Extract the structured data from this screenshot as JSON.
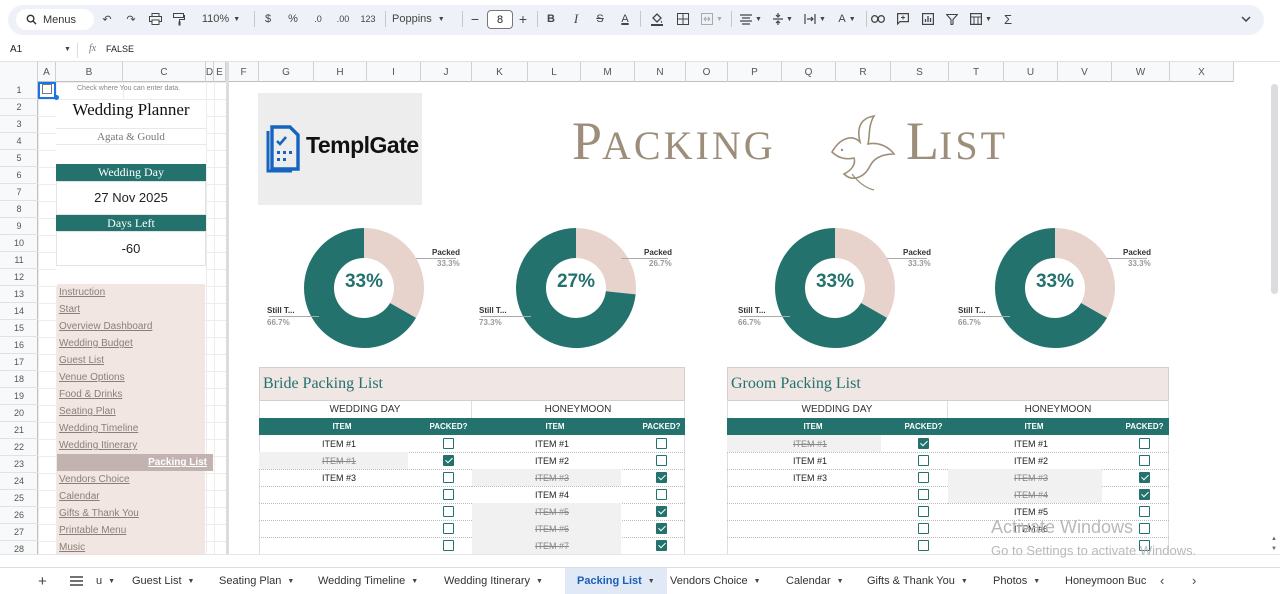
{
  "toolbar": {
    "menus_label": "Menus",
    "zoom": "110%",
    "currency": "$",
    "percent": "%",
    "dec_decrease": ".0",
    "dec_increase": ".00",
    "number_format": "123",
    "font": "Poppins",
    "font_size": "8",
    "minus": "−",
    "plus": "+",
    "bold": "B",
    "italic": "I",
    "strike": "S",
    "text_color": "A",
    "fx": "fx",
    "sigma": "Σ"
  },
  "formula_bar": {
    "cell_ref": "A1",
    "fx_label": "fx",
    "value": "FALSE"
  },
  "columns": [
    "A",
    "B",
    "C",
    "D",
    "E",
    "F",
    "G",
    "H",
    "I",
    "J",
    "K",
    "L",
    "M",
    "N",
    "O",
    "P",
    "Q",
    "R",
    "S",
    "T",
    "U",
    "V",
    "W",
    "X"
  ],
  "rows": [
    "1",
    "2",
    "3",
    "4",
    "5",
    "6",
    "7",
    "8",
    "9",
    "10",
    "11",
    "12",
    "13",
    "14",
    "15",
    "16",
    "17",
    "18",
    "19",
    "20",
    "21",
    "22",
    "23",
    "24",
    "25",
    "26",
    "27",
    "28"
  ],
  "sidebar": {
    "hint": "Check where You can enter data.",
    "title": "Wedding Planner",
    "couple": "Agata & Gould",
    "wedding_day_label": "Wedding Day",
    "wedding_day_value": "27 Nov 2025",
    "days_left_label": "Days Left",
    "days_left_value": "-60",
    "items": [
      {
        "label": "Instruction"
      },
      {
        "label": "Start"
      },
      {
        "label": "Overview Dashboard"
      },
      {
        "label": "Wedding Budget"
      },
      {
        "label": "Guest List"
      },
      {
        "label": "Venue Options"
      },
      {
        "label": "Food & Drinks"
      },
      {
        "label": "Seating Plan"
      },
      {
        "label": "Wedding Timeline"
      },
      {
        "label": "Wedding Itinerary"
      },
      {
        "label": "Packing List"
      },
      {
        "label": "Vendors Choice"
      },
      {
        "label": "Calendar"
      },
      {
        "label": "Gifts & Thank You"
      },
      {
        "label": "Printable Menu"
      },
      {
        "label": "Music"
      }
    ],
    "active_index": 10
  },
  "logo": {
    "text": "TemplGate"
  },
  "page_title": {
    "first": "P",
    "rest1": "ACKING",
    "second": "L",
    "rest2": "IST"
  },
  "colors": {
    "teal": "#23726d",
    "blush": "#e8d3cc",
    "header_bg": "#f0e6e3",
    "title_brown": "#9d8e7c"
  },
  "charts": [
    {
      "pct_label": "33%",
      "packed_label": "Packed",
      "packed_pct": "33.3%",
      "still_label": "Still T...",
      "still_pct": "66.7%",
      "packed_value": 33.3
    },
    {
      "pct_label": "27%",
      "packed_label": "Packed",
      "packed_pct": "26.7%",
      "still_label": "Still T...",
      "still_pct": "73.3%",
      "packed_value": 26.7
    },
    {
      "pct_label": "33%",
      "packed_label": "Packed",
      "packed_pct": "33.3%",
      "still_label": "Still T...",
      "still_pct": "66.7%",
      "packed_value": 33.3
    },
    {
      "pct_label": "33%",
      "packed_label": "Packed",
      "packed_pct": "33.3%",
      "still_label": "Still T...",
      "still_pct": "66.7%",
      "packed_value": 33.3
    }
  ],
  "bride": {
    "title": "Bride Packing List",
    "wedding_day_header": "WEDDING DAY",
    "honeymoon_header": "HONEYMOON",
    "item_header": "ITEM",
    "packed_header": "PACKED?",
    "wedding_day": [
      {
        "item": "ITEM #1",
        "packed": false
      },
      {
        "item": "ITEM #1",
        "packed": true
      },
      {
        "item": "ITEM #3",
        "packed": false
      },
      {
        "item": "",
        "packed": false
      },
      {
        "item": "",
        "packed": false
      },
      {
        "item": "",
        "packed": false
      },
      {
        "item": "",
        "packed": false
      }
    ],
    "honeymoon": [
      {
        "item": "ITEM #1",
        "packed": false
      },
      {
        "item": "ITEM #2",
        "packed": false
      },
      {
        "item": "ITEM #3",
        "packed": true
      },
      {
        "item": "ITEM #4",
        "packed": false
      },
      {
        "item": "ITEM #5",
        "packed": true
      },
      {
        "item": "ITEM #6",
        "packed": true
      },
      {
        "item": "ITEM #7",
        "packed": true
      }
    ]
  },
  "groom": {
    "title": "Groom Packing List",
    "wedding_day_header": "WEDDING DAY",
    "honeymoon_header": "HONEYMOON",
    "item_header": "ITEM",
    "packed_header": "PACKED?",
    "wedding_day": [
      {
        "item": "ITEM #1",
        "packed": true
      },
      {
        "item": "ITEM #1",
        "packed": false
      },
      {
        "item": "ITEM #3",
        "packed": false
      },
      {
        "item": "",
        "packed": false
      },
      {
        "item": "",
        "packed": false
      },
      {
        "item": "",
        "packed": false
      },
      {
        "item": "",
        "packed": false
      }
    ],
    "honeymoon": [
      {
        "item": "ITEM #1",
        "packed": false
      },
      {
        "item": "ITEM #2",
        "packed": false
      },
      {
        "item": "ITEM #3",
        "packed": true
      },
      {
        "item": "ITEM #4",
        "packed": true
      },
      {
        "item": "ITEM #5",
        "packed": false
      },
      {
        "item": "ITEM #6",
        "packed": false
      },
      {
        "item": "",
        "packed": false
      }
    ]
  },
  "watermark": {
    "line1": "Activate Windows",
    "line2": "Go to Settings to activate Windows."
  },
  "tabs": [
    {
      "label": "u"
    },
    {
      "label": "Guest List"
    },
    {
      "label": "Seating Plan"
    },
    {
      "label": "Wedding Timeline"
    },
    {
      "label": "Wedding Itinerary"
    },
    {
      "label": "Packing List"
    },
    {
      "label": "Vendors Choice"
    },
    {
      "label": "Calendar"
    },
    {
      "label": "Gifts & Thank You"
    },
    {
      "label": "Photos"
    },
    {
      "label": "Honeymoon Buc"
    }
  ],
  "active_tab": 5
}
